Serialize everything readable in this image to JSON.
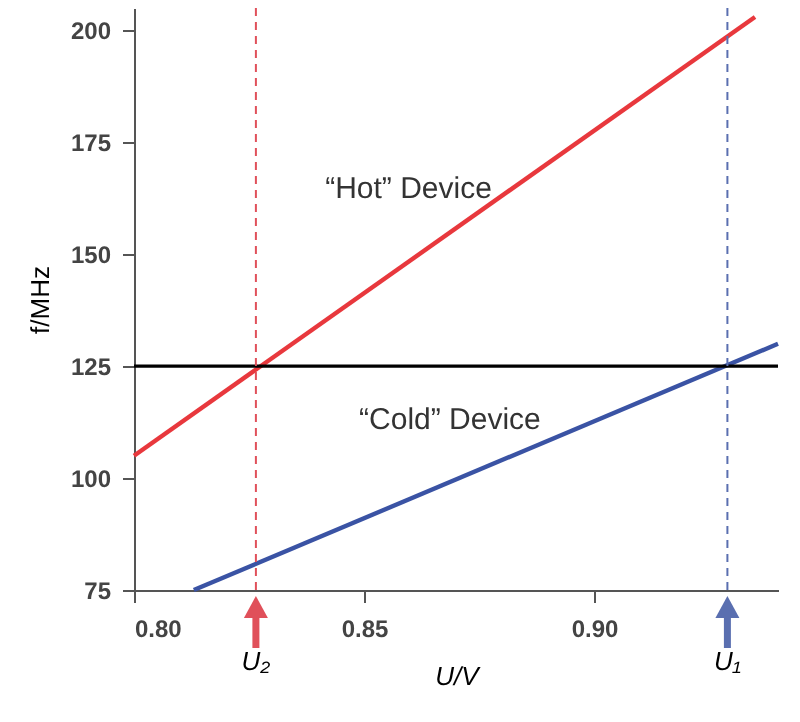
{
  "chart_data": {
    "type": "line",
    "xlabel": "U/V",
    "ylabel": "f/MHz",
    "xlim": [
      0.8,
      0.94
    ],
    "ylim": [
      75,
      205
    ],
    "xticks": [
      {
        "value": 0.8,
        "label": "0.80"
      },
      {
        "value": 0.85,
        "label": "0.85"
      },
      {
        "value": 0.9,
        "label": "0.90"
      }
    ],
    "yticks": [
      75,
      100,
      125,
      150,
      175,
      200
    ],
    "marker": "none",
    "line_style": "solid",
    "series": [
      {
        "name": "“Hot” Device",
        "color": "#e8383d",
        "x": [
          0.8,
          0.935
        ],
        "values": [
          105,
          203
        ]
      },
      {
        "name": "“Cold” Device",
        "color": "#3a53a4",
        "x": [
          0.813,
          0.94
        ],
        "values": [
          75,
          130
        ]
      }
    ],
    "ref_lines": [
      {
        "axis": "y",
        "value": 125,
        "color": "#000000",
        "line_style": "solid"
      },
      {
        "axis": "x",
        "value": 0.8265,
        "label": "U₂",
        "color": "#e0505a",
        "line_style": "dashed"
      },
      {
        "axis": "x",
        "value": 0.929,
        "label": "U₁",
        "color": "#5a6fb0",
        "line_style": "dashed"
      }
    ]
  }
}
